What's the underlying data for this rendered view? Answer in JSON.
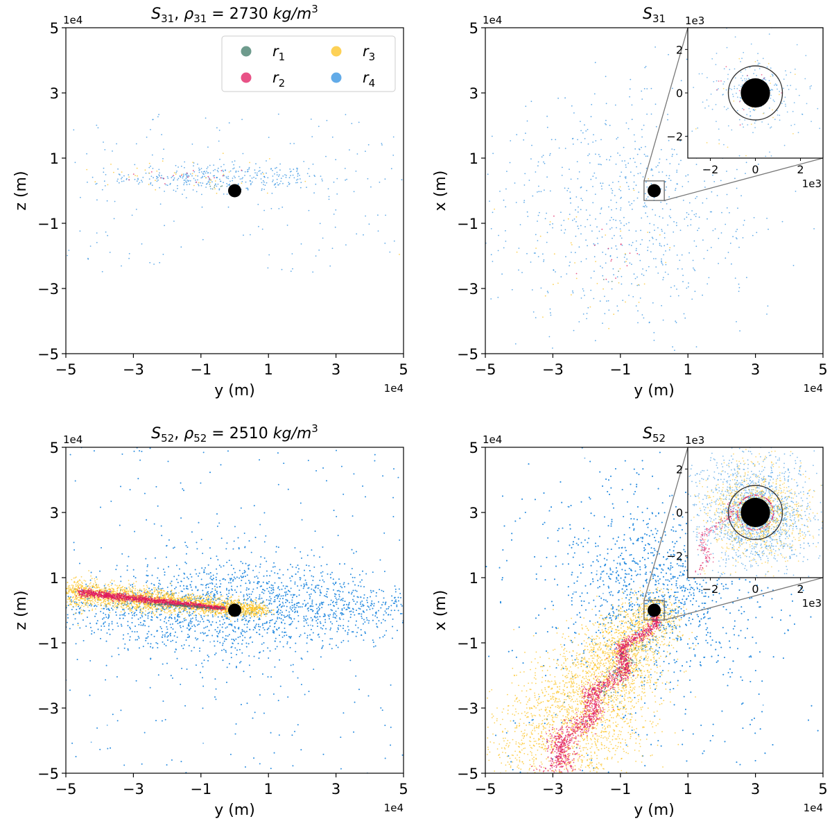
{
  "figure": {
    "description_free": true
  },
  "colors": {
    "r1": "#3d7a67",
    "r2": "#e0185e",
    "r3": "#fcc21e",
    "r4": "#2d8fe0",
    "body": "#000000"
  },
  "legend": {
    "entries": [
      {
        "key": "r1",
        "label": "r",
        "sub": "1"
      },
      {
        "key": "r2",
        "label": "r",
        "sub": "2"
      },
      {
        "key": "r3",
        "label": "r",
        "sub": "3"
      },
      {
        "key": "r4",
        "label": "r",
        "sub": "4"
      }
    ]
  },
  "chart_data": [
    {
      "type": "scatter",
      "id": "s31-yz",
      "title": {
        "s": "S",
        "s_sub": "31",
        "sep": ", ",
        "rho": "ρ",
        "rho_sub": "31",
        "eq": " = 2730 ",
        "unit": "kg/m",
        "unit_sup": "3"
      },
      "xlabel": "y (m)",
      "ylabel": "z (m)",
      "xlim": [
        -5,
        5
      ],
      "ylim": [
        -5,
        5
      ],
      "xticks": [
        "−5",
        "−3",
        "−1",
        "1",
        "3",
        "5"
      ],
      "yticks": [
        "−5",
        "−3",
        "−1",
        "1",
        "3",
        "5"
      ],
      "multiplier_x": "1e4",
      "multiplier_y": "1e4",
      "show_legend": true,
      "central_body": {
        "x": 0,
        "y": 0
      },
      "series": [
        {
          "name": "r4",
          "pattern": "disk-sparse",
          "count": 500,
          "cx": -0.5,
          "cy": 0.4,
          "sx": 1.6,
          "sy": 0.25,
          "halo": 0.35
        },
        {
          "name": "r3",
          "pattern": "disk-sparse",
          "count": 45,
          "cx": -2.0,
          "cy": 0.45,
          "sx": 1.5,
          "sy": 0.3,
          "halo": 0.1
        },
        {
          "name": "r2",
          "pattern": "disk-sparse",
          "count": 18,
          "cx": -1.8,
          "cy": 0.4,
          "sx": 1.2,
          "sy": 0.15,
          "halo": 0
        },
        {
          "name": "r1",
          "pattern": "disk-sparse",
          "count": 8,
          "cx": -0.3,
          "cy": 0.1,
          "sx": 0.3,
          "sy": 0.05,
          "halo": 0
        }
      ]
    },
    {
      "type": "scatter",
      "id": "s31-yx",
      "title": {
        "s": "S",
        "s_sub": "31"
      },
      "xlabel": "y (m)",
      "ylabel": "x (m)",
      "xlim": [
        -5,
        5
      ],
      "ylim": [
        -5,
        5
      ],
      "xticks": [
        "−5",
        "−3",
        "−1",
        "1",
        "3",
        "5"
      ],
      "yticks": [
        "−5",
        "−3",
        "−1",
        "1",
        "3",
        "5"
      ],
      "multiplier_x": "1e4",
      "multiplier_y": "1e4",
      "show_legend": false,
      "central_body": {
        "x": 0,
        "y": 0
      },
      "zoom_box": [
        -0.3,
        0.3,
        -0.3,
        0.3
      ],
      "series": [
        {
          "name": "r4",
          "pattern": "cloud-sparse",
          "count": 750,
          "cx": -0.8,
          "cy": -0.6,
          "sx": 2.0,
          "sy": 2.0
        },
        {
          "name": "r3",
          "pattern": "cloud-sparse",
          "count": 40,
          "cx": -2.0,
          "cy": -2.0,
          "sx": 1.2,
          "sy": 1.2
        },
        {
          "name": "r2",
          "pattern": "cloud-sparse",
          "count": 14,
          "cx": -1.5,
          "cy": -1.8,
          "sx": 0.8,
          "sy": 0.8
        },
        {
          "name": "r1",
          "pattern": "cloud-sparse",
          "count": 3,
          "cx": -1.5,
          "cy": -2.7,
          "sx": 0.3,
          "sy": 0.3
        }
      ],
      "inset": {
        "xlim": [
          -3,
          3
        ],
        "ylim": [
          -3,
          3
        ],
        "xticks": [
          "−2",
          "0",
          "2"
        ],
        "yticks": [
          "−2",
          "0",
          "2"
        ],
        "multiplier_x": "1e3",
        "multiplier_y": "1e3",
        "ring_radius": 1.0,
        "body_radius": 0.5,
        "series": [
          {
            "name": "r4",
            "count": 220,
            "spread": 2.2
          },
          {
            "name": "r3",
            "count": 30,
            "spread": 1.8
          },
          {
            "name": "r2",
            "count": 12,
            "spread": 1.5
          }
        ]
      }
    },
    {
      "type": "scatter",
      "id": "s52-yz",
      "title": {
        "s": "S",
        "s_sub": "52",
        "sep": ", ",
        "rho": "ρ",
        "rho_sub": "52",
        "eq": " = 2510 ",
        "unit": "kg/m",
        "unit_sup": "3"
      },
      "xlabel": "y (m)",
      "ylabel": "z (m)",
      "xlim": [
        -5,
        5
      ],
      "ylim": [
        -5,
        5
      ],
      "xticks": [
        "−5",
        "−3",
        "−1",
        "1",
        "3",
        "5"
      ],
      "yticks": [
        "−5",
        "−3",
        "−1",
        "1",
        "3",
        "5"
      ],
      "multiplier_x": "1e4",
      "multiplier_y": "1e4",
      "show_legend": false,
      "central_body": {
        "x": 0,
        "y": 0
      },
      "series": [
        {
          "name": "r4",
          "pattern": "disk-dense",
          "count": 9000,
          "cx": 0.0,
          "cy": 0.1,
          "sx": 2.8,
          "sy": 0.9,
          "halo": 0.12
        },
        {
          "name": "r3",
          "pattern": "streak",
          "count": 2600,
          "x0": -5.0,
          "y0": 0.55,
          "x1": 0.8,
          "y1": 0.0,
          "width": 0.35
        },
        {
          "name": "r2",
          "pattern": "streak",
          "count": 1400,
          "x0": -4.6,
          "y0": 0.55,
          "x1": -0.3,
          "y1": 0.05,
          "width": 0.1
        },
        {
          "name": "r1",
          "pattern": "streak",
          "count": 120,
          "x0": -2.5,
          "y0": 0.2,
          "x1": -0.3,
          "y1": 0.05,
          "width": 0.04
        }
      ]
    },
    {
      "type": "scatter",
      "id": "s52-yx",
      "title": {
        "s": "S",
        "s_sub": "52"
      },
      "xlabel": "y (m)",
      "ylabel": "x (m)",
      "xlim": [
        -5,
        5
      ],
      "ylim": [
        -5,
        5
      ],
      "xticks": [
        "−5",
        "−3",
        "−1",
        "1",
        "3",
        "5"
      ],
      "yticks": [
        "−5",
        "−3",
        "−1",
        "1",
        "3",
        "5"
      ],
      "multiplier_x": "1e4",
      "multiplier_y": "1e4",
      "show_legend": false,
      "central_body": {
        "x": 0,
        "y": 0
      },
      "zoom_box": [
        -0.3,
        0.3,
        -0.3,
        0.3
      ],
      "series": [
        {
          "name": "r4",
          "pattern": "cloud-dense",
          "count": 11000,
          "cx": 0.0,
          "cy": 0.0,
          "sx": 3.0,
          "sy": 3.0
        },
        {
          "name": "r3",
          "pattern": "tail",
          "count": 3200,
          "x0": 0.0,
          "y0": 0.0,
          "x1": -3.5,
          "y1": -5.0,
          "width": 0.9
        },
        {
          "name": "r2",
          "pattern": "tail",
          "count": 1600,
          "x0": 0.0,
          "y0": -0.1,
          "x1": -3.2,
          "y1": -5.0,
          "width": 0.15
        },
        {
          "name": "r1",
          "pattern": "tail",
          "count": 80,
          "x0": -0.5,
          "y0": -1.0,
          "x1": -1.5,
          "y1": -2.8,
          "width": 0.08
        }
      ],
      "inset": {
        "xlim": [
          -3,
          3
        ],
        "ylim": [
          -3,
          3
        ],
        "xticks": [
          "−2",
          "0",
          "2"
        ],
        "yticks": [
          "−2",
          "0",
          "2"
        ],
        "multiplier_x": "1e3",
        "multiplier_y": "1e3",
        "ring_radius": 1.0,
        "body_radius": 0.5,
        "series": [
          {
            "name": "r4",
            "count": 1500,
            "spread": 2.4
          },
          {
            "name": "r3",
            "count": 900,
            "spread": 1.8
          },
          {
            "name": "r2",
            "count": 260,
            "spread": 1.6
          }
        ]
      }
    }
  ]
}
